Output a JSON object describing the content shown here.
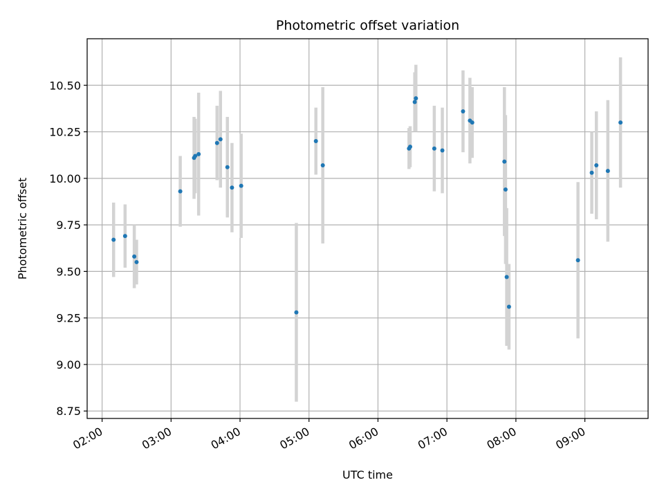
{
  "chart_data": {
    "type": "scatter",
    "title": "Photometric offset variation",
    "xlabel": "UTC time",
    "ylabel": "Photometric offset",
    "grid": true,
    "colors": {
      "points": "#1f77b4",
      "errorbars": "#d3d3d3",
      "grid": "#b0b0b0",
      "axes": "#000000"
    },
    "x_tick_labels": [
      "02:00",
      "03:00",
      "04:00",
      "05:00",
      "06:00",
      "07:00",
      "08:00",
      "09:00"
    ],
    "y_tick_labels": [
      "8.75",
      "9.00",
      "9.25",
      "9.50",
      "9.75",
      "10.00",
      "10.25",
      "10.50"
    ],
    "xlim": [
      "01:47",
      "09:55"
    ],
    "ylim": [
      8.71,
      10.75
    ],
    "points": [
      {
        "x": "02:10",
        "y": 9.67,
        "err": 0.2
      },
      {
        "x": "02:20",
        "y": 9.69,
        "err": 0.17
      },
      {
        "x": "02:28",
        "y": 9.58,
        "err": 0.17
      },
      {
        "x": "02:30",
        "y": 9.55,
        "err": 0.12
      },
      {
        "x": "03:08",
        "y": 9.93,
        "err": 0.19
      },
      {
        "x": "03:20",
        "y": 10.11,
        "err": 0.22
      },
      {
        "x": "03:21",
        "y": 10.12,
        "err": 0.2
      },
      {
        "x": "03:24",
        "y": 10.13,
        "err": 0.33
      },
      {
        "x": "03:40",
        "y": 10.19,
        "err": 0.2
      },
      {
        "x": "03:43",
        "y": 10.21,
        "err": 0.26
      },
      {
        "x": "03:49",
        "y": 10.06,
        "err": 0.27
      },
      {
        "x": "03:53",
        "y": 9.95,
        "err": 0.24
      },
      {
        "x": "04:01",
        "y": 9.96,
        "err": 0.28
      },
      {
        "x": "04:49",
        "y": 9.28,
        "err": 0.48
      },
      {
        "x": "05:06",
        "y": 10.2,
        "err": 0.18
      },
      {
        "x": "05:12",
        "y": 10.07,
        "err": 0.42
      },
      {
        "x": "06:27",
        "y": 10.16,
        "err": 0.11
      },
      {
        "x": "06:28",
        "y": 10.17,
        "err": 0.11
      },
      {
        "x": "06:32",
        "y": 10.41,
        "err": 0.16
      },
      {
        "x": "06:33",
        "y": 10.43,
        "err": 0.18
      },
      {
        "x": "06:49",
        "y": 10.16,
        "err": 0.23
      },
      {
        "x": "06:56",
        "y": 10.15,
        "err": 0.23
      },
      {
        "x": "07:14",
        "y": 10.36,
        "err": 0.22
      },
      {
        "x": "07:20",
        "y": 10.31,
        "err": 0.23
      },
      {
        "x": "07:22",
        "y": 10.3,
        "err": 0.19
      },
      {
        "x": "07:50",
        "y": 10.09,
        "err": 0.4
      },
      {
        "x": "07:51",
        "y": 9.94,
        "err": 0.4
      },
      {
        "x": "07:52",
        "y": 9.47,
        "err": 0.37
      },
      {
        "x": "07:54",
        "y": 9.31,
        "err": 0.23
      },
      {
        "x": "08:54",
        "y": 9.56,
        "err": 0.42
      },
      {
        "x": "09:06",
        "y": 10.03,
        "err": 0.22
      },
      {
        "x": "09:10",
        "y": 10.07,
        "err": 0.29
      },
      {
        "x": "09:20",
        "y": 10.04,
        "err": 0.38
      },
      {
        "x": "09:31",
        "y": 10.3,
        "err": 0.35
      }
    ]
  }
}
